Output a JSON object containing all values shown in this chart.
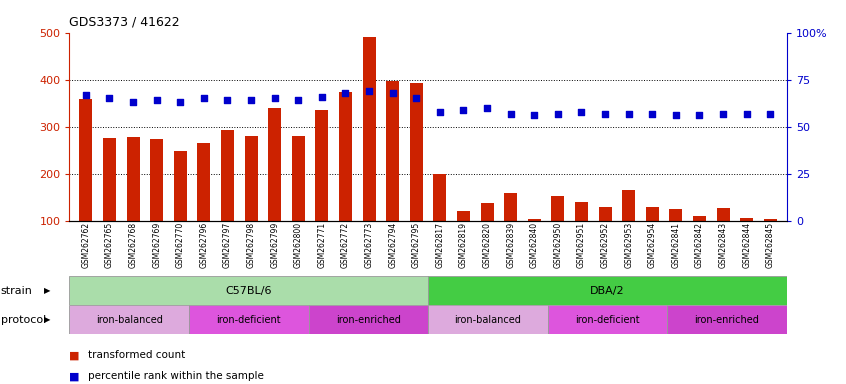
{
  "title": "GDS3373 / 41622",
  "samples": [
    "GSM262762",
    "GSM262765",
    "GSM262768",
    "GSM262769",
    "GSM262770",
    "GSM262796",
    "GSM262797",
    "GSM262798",
    "GSM262799",
    "GSM262800",
    "GSM262771",
    "GSM262772",
    "GSM262773",
    "GSM262794",
    "GSM262795",
    "GSM262817",
    "GSM262819",
    "GSM262820",
    "GSM262839",
    "GSM262840",
    "GSM262950",
    "GSM262951",
    "GSM262952",
    "GSM262953",
    "GSM262954",
    "GSM262841",
    "GSM262842",
    "GSM262843",
    "GSM262844",
    "GSM262845"
  ],
  "bar_values": [
    358,
    276,
    278,
    273,
    248,
    265,
    293,
    280,
    340,
    280,
    335,
    373,
    490,
    398,
    393,
    200,
    120,
    138,
    159,
    103,
    152,
    140,
    130,
    165,
    130,
    125,
    110,
    128,
    105,
    103
  ],
  "percentile_values": [
    67,
    65,
    63,
    64,
    63,
    65,
    64,
    64,
    65,
    64,
    66,
    68,
    69,
    68,
    65,
    58,
    59,
    60,
    57,
    56,
    57,
    58,
    57,
    57,
    57,
    56,
    56,
    57,
    57,
    57
  ],
  "ylim_left": [
    100,
    500
  ],
  "ylim_right": [
    0,
    100
  ],
  "yticks_left": [
    100,
    200,
    300,
    400,
    500
  ],
  "yticks_right": [
    0,
    25,
    50,
    75,
    100
  ],
  "bar_color": "#cc2200",
  "dot_color": "#0000cc",
  "tick_bg_color": "#d0d0d0",
  "strain_groups": [
    {
      "label": "C57BL/6",
      "start": 0,
      "end": 14,
      "color": "#aaddaa"
    },
    {
      "label": "DBA/2",
      "start": 15,
      "end": 29,
      "color": "#44cc44"
    }
  ],
  "protocol_groups": [
    {
      "label": "iron-balanced",
      "start": 0,
      "end": 4,
      "color": "#ddaadd"
    },
    {
      "label": "iron-deficient",
      "start": 5,
      "end": 9,
      "color": "#dd55dd"
    },
    {
      "label": "iron-enriched",
      "start": 10,
      "end": 14,
      "color": "#cc44cc"
    },
    {
      "label": "iron-balanced",
      "start": 15,
      "end": 19,
      "color": "#ddaadd"
    },
    {
      "label": "iron-deficient",
      "start": 20,
      "end": 24,
      "color": "#dd55dd"
    },
    {
      "label": "iron-enriched",
      "start": 25,
      "end": 29,
      "color": "#cc44cc"
    }
  ],
  "legend": [
    {
      "label": "transformed count",
      "color": "#cc2200"
    },
    {
      "label": "percentile rank within the sample",
      "color": "#0000cc"
    }
  ],
  "strain_label": "strain",
  "protocol_label": "protocol"
}
